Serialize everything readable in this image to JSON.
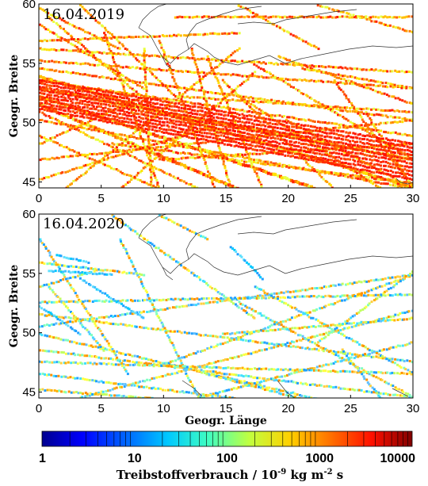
{
  "figure": {
    "panels": [
      {
        "date": "16.04.2019",
        "ylabel": "Geogr. Breite",
        "xlabel": "",
        "x_ticks": [
          "0",
          "5",
          "10",
          "15",
          "20",
          "25",
          "30"
        ],
        "y_ticks": [
          "45",
          "50",
          "55",
          "60"
        ],
        "lon_range": [
          0,
          30
        ],
        "lat_range": [
          44.5,
          60
        ],
        "traffic_intensity": "high"
      },
      {
        "date": "16.04.2020",
        "ylabel": "Geogr. Breite",
        "xlabel": "Geogr. Länge",
        "x_ticks": [
          "0",
          "5",
          "10",
          "15",
          "20",
          "25",
          "30"
        ],
        "y_ticks": [
          "45",
          "50",
          "55",
          "60"
        ],
        "lon_range": [
          0,
          30
        ],
        "lat_range": [
          44.5,
          60
        ],
        "traffic_intensity": "low"
      }
    ],
    "colorbar": {
      "scale": "log",
      "range": [
        1,
        10000
      ],
      "ticks": [
        "1",
        "10",
        "100",
        "1000",
        "10000"
      ],
      "label_main": "Treibstoffverbrauch / 10",
      "label_exp": "-9",
      "label_units": " kg m",
      "label_exp2": "-2",
      "label_tail": " s",
      "colors": [
        "#00008f",
        "#0000ff",
        "#0080ff",
        "#00ffff",
        "#80ff80",
        "#ffff00",
        "#ff8000",
        "#ff0000",
        "#800000"
      ]
    }
  }
}
